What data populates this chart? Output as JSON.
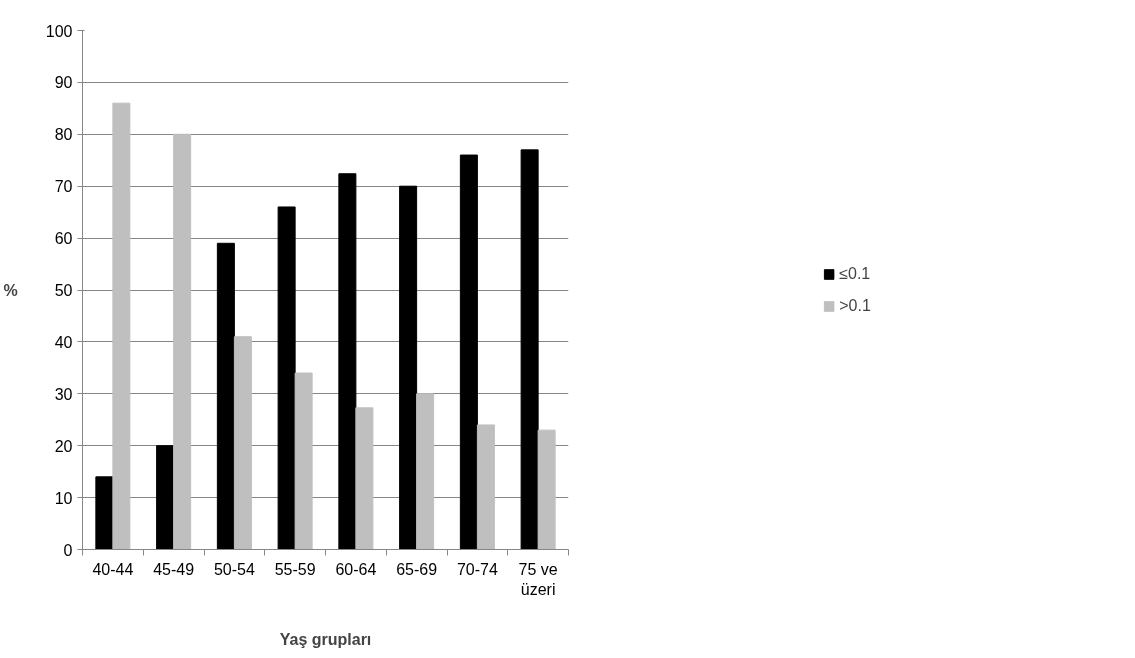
{
  "chart_data": {
    "type": "bar",
    "xlabel": "Yaş grupları",
    "ylabel": "%",
    "categories": [
      "40-44",
      "45-49",
      "50-54",
      "55-59",
      "60-64",
      "65-69",
      "70-74",
      "75 ve\nüzeri"
    ],
    "series": [
      {
        "name": "≤0.1",
        "color": "#000000",
        "values": [
          14,
          20,
          59,
          66,
          72.4,
          70,
          76,
          77
        ]
      },
      {
        "name": ">0.1",
        "color": "#bfbfbf",
        "values": [
          86,
          80,
          41,
          34,
          27.3,
          30,
          24,
          23
        ]
      }
    ],
    "ylim": [
      0,
      100
    ],
    "yticks": [
      0,
      10,
      20,
      30,
      40,
      50,
      60,
      70,
      80,
      90,
      100
    ],
    "grid": "y",
    "legend": "right"
  }
}
